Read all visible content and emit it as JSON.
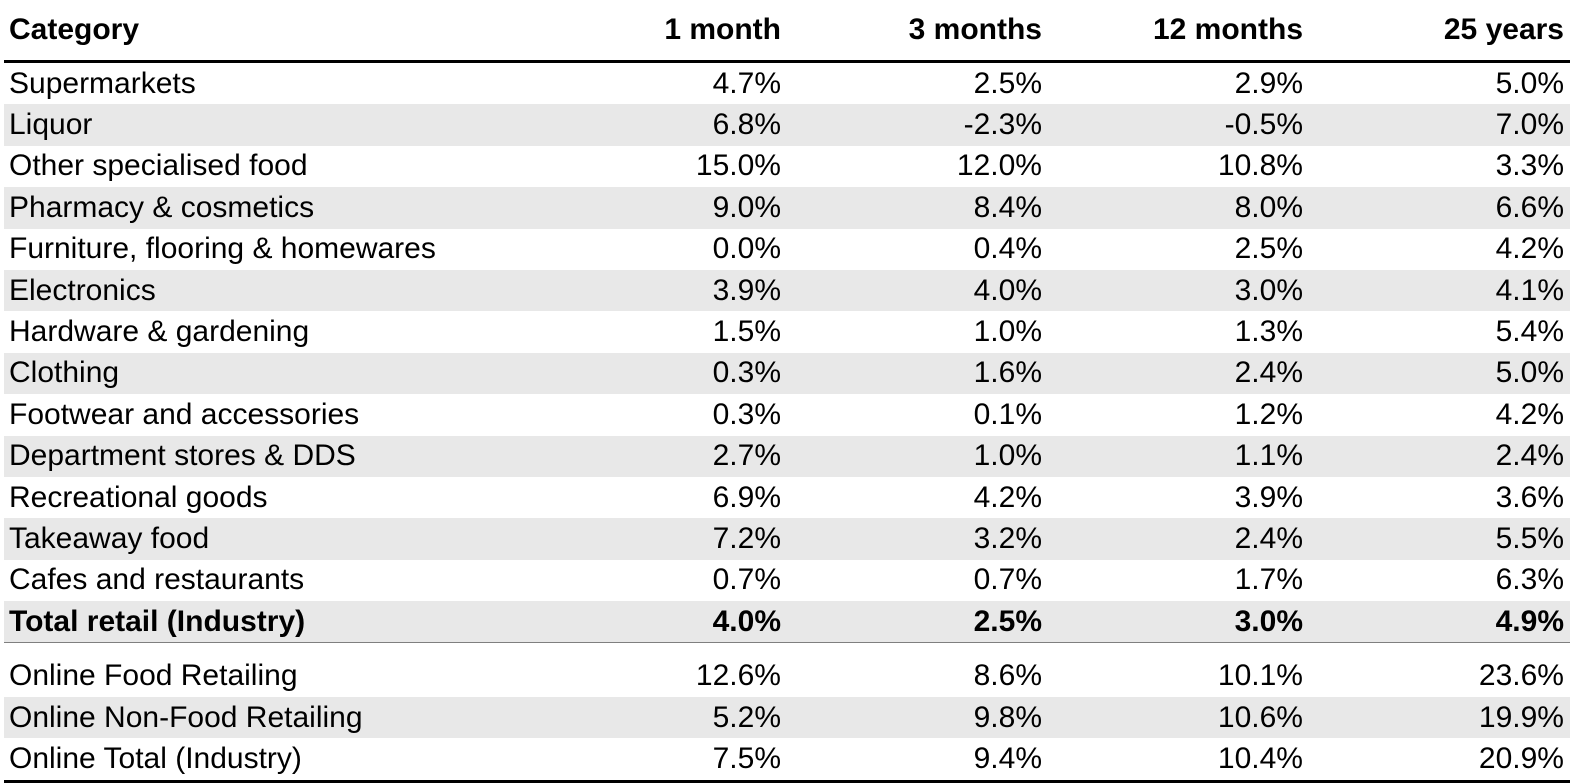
{
  "chart_data": {
    "type": "table",
    "columns": [
      "Category",
      "1 month",
      "3 months",
      "12 months",
      "25 years"
    ],
    "rows": [
      {
        "category": "Supermarkets",
        "values": [
          "4.7%",
          "2.5%",
          "2.9%",
          "5.0%"
        ],
        "shaded": false,
        "bold": false
      },
      {
        "category": "Liquor",
        "values": [
          "6.8%",
          "-2.3%",
          "-0.5%",
          "7.0%"
        ],
        "shaded": true,
        "bold": false
      },
      {
        "category": "Other specialised food",
        "values": [
          "15.0%",
          "12.0%",
          "10.8%",
          "3.3%"
        ],
        "shaded": false,
        "bold": false
      },
      {
        "category": "Pharmacy & cosmetics",
        "values": [
          "9.0%",
          "8.4%",
          "8.0%",
          "6.6%"
        ],
        "shaded": true,
        "bold": false
      },
      {
        "category": "Furniture, flooring & homewares",
        "values": [
          "0.0%",
          "0.4%",
          "2.5%",
          "4.2%"
        ],
        "shaded": false,
        "bold": false
      },
      {
        "category": "Electronics",
        "values": [
          "3.9%",
          "4.0%",
          "3.0%",
          "4.1%"
        ],
        "shaded": true,
        "bold": false
      },
      {
        "category": "Hardware & gardening",
        "values": [
          "1.5%",
          "1.0%",
          "1.3%",
          "5.4%"
        ],
        "shaded": false,
        "bold": false
      },
      {
        "category": "Clothing",
        "values": [
          "0.3%",
          "1.6%",
          "2.4%",
          "5.0%"
        ],
        "shaded": true,
        "bold": false
      },
      {
        "category": "Footwear and accessories",
        "values": [
          "0.3%",
          "0.1%",
          "1.2%",
          "4.2%"
        ],
        "shaded": false,
        "bold": false
      },
      {
        "category": "Department stores & DDS",
        "values": [
          "2.7%",
          "1.0%",
          "1.1%",
          "2.4%"
        ],
        "shaded": true,
        "bold": false
      },
      {
        "category": "Recreational goods",
        "values": [
          "6.9%",
          "4.2%",
          "3.9%",
          "3.6%"
        ],
        "shaded": false,
        "bold": false
      },
      {
        "category": "Takeaway food",
        "values": [
          "7.2%",
          "3.2%",
          "2.4%",
          "5.5%"
        ],
        "shaded": true,
        "bold": false
      },
      {
        "category": "Cafes and restaurants",
        "values": [
          "0.7%",
          "0.7%",
          "1.7%",
          "6.3%"
        ],
        "shaded": false,
        "bold": false
      },
      {
        "category": "Total retail (Industry)",
        "values": [
          "4.0%",
          "2.5%",
          "3.0%",
          "4.9%"
        ],
        "shaded": true,
        "bold": true
      }
    ],
    "online_rows": [
      {
        "category": "Online Food Retailing",
        "values": [
          "12.6%",
          "8.6%",
          "10.1%",
          "23.6%"
        ],
        "shaded": false
      },
      {
        "category": "Online Non-Food Retailing",
        "values": [
          "5.2%",
          "9.8%",
          "10.6%",
          "19.9%"
        ],
        "shaded": true
      },
      {
        "category": "Online Total (Industry)",
        "values": [
          "7.5%",
          "9.4%",
          "10.4%",
          "20.9%"
        ],
        "shaded": false
      }
    ],
    "colors": {
      "shade": "#e8e8e8",
      "rule": "#000000"
    }
  }
}
